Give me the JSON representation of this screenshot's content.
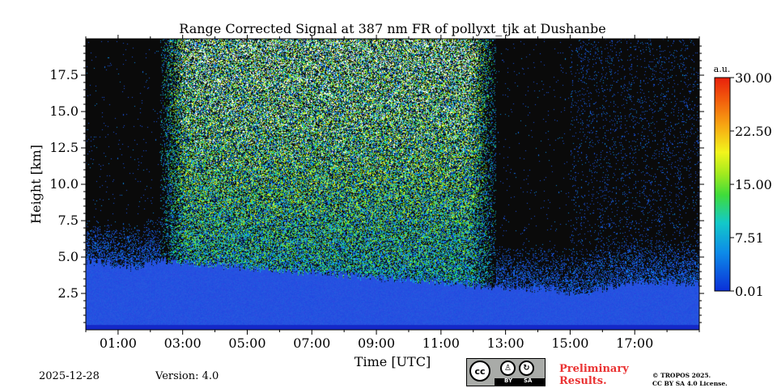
{
  "chart_data": {
    "type": "heatmap",
    "title": "Range Corrected Signal at 387 nm FR of pollyxt_tjk at Dushanbe",
    "xlabel": "Time [UTC]",
    "ylabel": "Height [km]",
    "xlim": [
      0,
      19
    ],
    "ylim": [
      0,
      20
    ],
    "x_ticks": [
      {
        "value": 1,
        "label": "01:00"
      },
      {
        "value": 3,
        "label": "03:00"
      },
      {
        "value": 5,
        "label": "05:00"
      },
      {
        "value": 7,
        "label": "07:00"
      },
      {
        "value": 9,
        "label": "09:00"
      },
      {
        "value": 11,
        "label": "11:00"
      },
      {
        "value": 13,
        "label": "13:00"
      },
      {
        "value": 15,
        "label": "15:00"
      },
      {
        "value": 17,
        "label": "17:00"
      }
    ],
    "y_ticks": [
      {
        "value": 2.5,
        "label": "2.5"
      },
      {
        "value": 5.0,
        "label": "5.0"
      },
      {
        "value": 7.5,
        "label": "7.5"
      },
      {
        "value": 10.0,
        "label": "10.0"
      },
      {
        "value": 12.5,
        "label": "12.5"
      },
      {
        "value": 15.0,
        "label": "15.0"
      },
      {
        "value": 17.5,
        "label": "17.5"
      }
    ],
    "colorbar": {
      "unit": "a.u.",
      "range": [
        0.01,
        30.0
      ],
      "ticks": [
        {
          "value": 0.01,
          "label": "0.01"
        },
        {
          "value": 7.51,
          "label": "7.51"
        },
        {
          "value": 15.0,
          "label": "15.00"
        },
        {
          "value": 22.5,
          "label": "22.50"
        },
        {
          "value": 30.0,
          "label": "30.00"
        }
      ]
    },
    "features": {
      "daylight_noise_window": [
        2.3,
        12.7
      ],
      "boundary_layer_top_km": [
        {
          "time": 0.0,
          "height": 4.8
        },
        {
          "time": 1.5,
          "height": 4.3
        },
        {
          "time": 2.2,
          "height": 4.8
        },
        {
          "time": 12.7,
          "height": 3.0
        },
        {
          "time": 14.5,
          "height": 2.8
        },
        {
          "time": 15.2,
          "height": 2.5
        },
        {
          "time": 17.0,
          "height": 3.3
        },
        {
          "time": 19.0,
          "height": 3.2
        }
      ]
    }
  },
  "footer": {
    "date": "2025-12-28",
    "version": "Version: 4.0",
    "license_badge": {
      "cc": "cc",
      "by": "BY",
      "sa": "SA"
    },
    "preliminary_line1": "Preliminary",
    "preliminary_line2": "Results.",
    "copyright_line1": "© TROPOS 2025.",
    "copyright_line2": "CC BY SA 4.0 License."
  },
  "colors": {
    "background_signal": "#0a0a0a",
    "boundary_layer": "#1f49e0"
  }
}
